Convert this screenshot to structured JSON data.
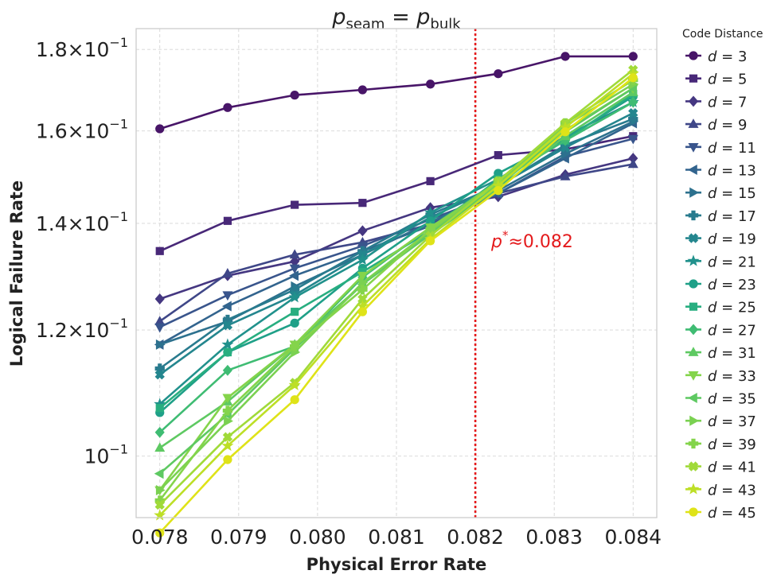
{
  "chart_data": {
    "type": "line",
    "title": "p_seam = p_bulk",
    "title_parts": {
      "p1": "p",
      "s1": "seam",
      "eq": " = ",
      "p2": "p",
      "s2": "bulk"
    },
    "xlabel": "Physical Error Rate",
    "ylabel": "Logical Failure Rate",
    "y_scale": "log",
    "xlim": [
      0.0777,
      0.0843
    ],
    "ylim": [
      0.0915,
      0.1855
    ],
    "x_ticks": [
      0.078,
      0.079,
      0.08,
      0.081,
      0.082,
      0.083,
      0.084
    ],
    "x_tick_labels": [
      "0.078",
      "0.079",
      "0.080",
      "0.081",
      "0.082",
      "0.083",
      "0.084"
    ],
    "y_ticks": [
      {
        "value": 0.1,
        "mant": "",
        "exp": "10",
        "sup": "−1"
      },
      {
        "value": 0.12,
        "mant": "1.2",
        "exp": "10",
        "sup": "−1"
      },
      {
        "value": 0.14,
        "mant": "1.4",
        "exp": "10",
        "sup": "−1"
      },
      {
        "value": 0.16,
        "mant": "1.6",
        "exp": "10",
        "sup": "−1"
      },
      {
        "value": 0.18,
        "mant": "1.8",
        "exp": "10",
        "sup": "−1"
      }
    ],
    "grid": true,
    "legend_title": "Code Distance",
    "legend_position": "outside-right",
    "threshold": {
      "x": 0.082,
      "color": "#e41a1c",
      "label_p": "p",
      "label_sup": "*",
      "label_value": "≈0.082"
    },
    "x": [
      0.078,
      0.07886,
      0.07971,
      0.08057,
      0.08143,
      0.08229,
      0.08314,
      0.084
    ],
    "series": [
      {
        "name": "d = 3",
        "d_label": "3",
        "color": "#481568",
        "marker": "circle",
        "values": [
          0.1605,
          0.1655,
          0.1685,
          0.1698,
          0.1712,
          0.1738,
          0.1782,
          0.1782
        ]
      },
      {
        "name": "d = 5",
        "d_label": "5",
        "color": "#482878",
        "marker": "square",
        "values": [
          0.1345,
          0.1405,
          0.1438,
          0.1442,
          0.1488,
          0.1545,
          0.1558,
          0.1588
        ]
      },
      {
        "name": "d = 7",
        "d_label": "7",
        "color": "#453781",
        "marker": "diamond",
        "values": [
          0.1255,
          0.1298,
          0.1325,
          0.1385,
          0.1432,
          0.1455,
          0.1502,
          0.1538
        ]
      },
      {
        "name": "d = 9",
        "d_label": "9",
        "color": "#3f4788",
        "marker": "triangle-up",
        "values": [
          0.1215,
          0.1302,
          0.1338,
          0.1362,
          0.1398,
          0.1462,
          0.1498,
          0.1525
        ]
      },
      {
        "name": "d = 11",
        "d_label": "11",
        "color": "#39558c",
        "marker": "triangle-down",
        "values": [
          0.1205,
          0.1262,
          0.1312,
          0.1355,
          0.1408,
          0.1462,
          0.1542,
          0.1582
        ]
      },
      {
        "name": "d = 13",
        "d_label": "13",
        "color": "#32648e",
        "marker": "triangle-left",
        "values": [
          0.1175,
          0.1242,
          0.1298,
          0.1345,
          0.1395,
          0.1462,
          0.1538,
          0.1618
        ]
      },
      {
        "name": "d = 15",
        "d_label": "15",
        "color": "#2d718e",
        "marker": "triangle-right",
        "values": [
          0.1175,
          0.1215,
          0.1278,
          0.1338,
          0.1402,
          0.1468,
          0.1548,
          0.1622
        ]
      },
      {
        "name": "d = 17",
        "d_label": "17",
        "color": "#297b8e",
        "marker": "plus",
        "values": [
          0.1135,
          0.1218,
          0.1272,
          0.1345,
          0.1418,
          0.1478,
          0.1568,
          0.1628
        ]
      },
      {
        "name": "d = 19",
        "d_label": "19",
        "color": "#24868e",
        "marker": "x",
        "values": [
          0.1125,
          0.1208,
          0.1262,
          0.1338,
          0.1412,
          0.1478,
          0.1562,
          0.1642
        ]
      },
      {
        "name": "d = 21",
        "d_label": "21",
        "color": "#21918c",
        "marker": "star",
        "values": [
          0.1078,
          0.1175,
          0.1258,
          0.1328,
          0.1422,
          0.1492,
          0.1588,
          0.1668
        ]
      },
      {
        "name": "d = 23",
        "d_label": "23",
        "color": "#1fa088",
        "marker": "circle",
        "values": [
          0.1065,
          0.1162,
          0.1212,
          0.1312,
          0.1405,
          0.1505,
          0.1582,
          0.1682
        ]
      },
      {
        "name": "d = 25",
        "d_label": "25",
        "color": "#28ae80",
        "marker": "square",
        "values": [
          0.1072,
          0.1162,
          0.1232,
          0.1305,
          0.1385,
          0.1492,
          0.1578,
          0.1688
        ]
      },
      {
        "name": "d = 27",
        "d_label": "27",
        "color": "#3fbc73",
        "marker": "diamond",
        "values": [
          0.1035,
          0.1132,
          0.1172,
          0.1295,
          0.1392,
          0.1488,
          0.1578,
          0.1668
        ]
      },
      {
        "name": "d = 31",
        "d_label": "31",
        "color": "#5ec962",
        "marker": "triangle-up",
        "values": [
          0.1012,
          0.1082,
          0.1175,
          0.1282,
          0.1378,
          0.1472,
          0.1588,
          0.1692
        ]
      },
      {
        "name": "d = 33",
        "d_label": "33",
        "color": "#84d44b",
        "marker": "triangle-down",
        "values": [
          0.0952,
          0.1088,
          0.1175,
          0.1298,
          0.1392,
          0.1482,
          0.1602,
          0.1702
        ]
      },
      {
        "name": "d = 35",
        "d_label": "35",
        "color": "#5ec962",
        "marker": "triangle-left",
        "values": [
          0.0975,
          0.1062,
          0.1168,
          0.1282,
          0.1382,
          0.1478,
          0.1598,
          0.1702
        ]
      },
      {
        "name": "d = 37",
        "d_label": "37",
        "color": "#7ad151",
        "marker": "triangle-right",
        "values": [
          0.0952,
          0.1052,
          0.1162,
          0.1285,
          0.1385,
          0.1485,
          0.1612,
          0.1712
        ]
      },
      {
        "name": "d = 39",
        "d_label": "39",
        "color": "#84d44b",
        "marker": "plus",
        "values": [
          0.0938,
          0.1068,
          0.1172,
          0.1272,
          0.1388,
          0.1488,
          0.1618,
          0.1722
        ]
      },
      {
        "name": "d = 41",
        "d_label": "41",
        "color": "#a0da39",
        "marker": "x",
        "values": [
          0.0932,
          0.1028,
          0.1112,
          0.1255,
          0.1375,
          0.1488,
          0.1618,
          0.1748
        ]
      },
      {
        "name": "d = 43",
        "d_label": "43",
        "color": "#bddf26",
        "marker": "star",
        "values": [
          0.0918,
          0.1015,
          0.1108,
          0.1242,
          0.1368,
          0.1478,
          0.1608,
          0.1738
        ]
      },
      {
        "name": "d = 45",
        "d_label": "45",
        "color": "#dfe318",
        "marker": "circle",
        "values": [
          0.0895,
          0.0995,
          0.1085,
          0.1232,
          0.1365,
          0.1468,
          0.1598,
          0.1728
        ]
      }
    ]
  }
}
